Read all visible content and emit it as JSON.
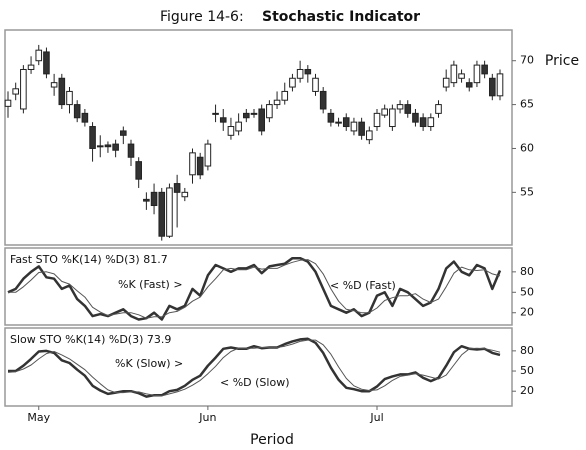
{
  "chart_data": [
    {
      "type": "candlestick",
      "figure_label": "Figure 14-6:",
      "title": "Stochastic Indicator",
      "ylabel": "Price",
      "up_color": "#ffffff",
      "down_color": "#333333",
      "open": [
        64.8,
        66.2,
        64.5,
        69,
        70,
        71,
        67,
        68,
        65,
        65,
        64,
        62.5,
        60.2,
        60.4,
        60.5,
        62,
        60.5,
        58.5,
        54.2,
        55,
        55,
        50,
        56,
        54.5,
        57,
        59,
        58,
        64,
        63.5,
        61.5,
        62,
        64,
        64,
        64.5,
        63.5,
        65,
        65.5,
        67,
        68,
        69,
        66.5,
        66.5,
        64,
        63,
        63.5,
        62,
        63,
        61,
        62.5,
        63.8,
        62.5,
        64.5,
        65,
        64,
        63.5,
        62.5,
        64,
        67,
        67.5,
        68,
        67.5,
        67.5,
        69.5,
        68,
        66
      ],
      "high": [
        66.5,
        67.5,
        69.5,
        70.5,
        71.8,
        71.5,
        68.5,
        68.5,
        67,
        65.5,
        64.5,
        63,
        61.5,
        60.8,
        61,
        62.5,
        61,
        59,
        55,
        56,
        55.5,
        56,
        57,
        55.5,
        60,
        59.5,
        61,
        65,
        64.5,
        63.5,
        64,
        64.5,
        64.5,
        65,
        65.5,
        66.5,
        67.5,
        68.5,
        70,
        69.5,
        68.5,
        67,
        64.5,
        63.5,
        64,
        63.5,
        63.5,
        62.5,
        64.5,
        65,
        65,
        65.5,
        65.5,
        64.5,
        64,
        64,
        65.5,
        69,
        70,
        69,
        68,
        70,
        70,
        68.5,
        69
      ],
      "low": [
        63.5,
        65.5,
        64,
        68.5,
        69.5,
        68,
        66,
        64.5,
        64,
        63,
        62.5,
        58.5,
        59,
        59.5,
        59,
        60.5,
        58,
        55.5,
        53,
        52.5,
        49.5,
        49.8,
        51,
        54,
        56,
        56.5,
        57.5,
        63,
        62,
        61,
        61.5,
        63,
        63.5,
        61.5,
        63,
        64.5,
        65,
        66.5,
        67.5,
        67.5,
        66,
        64,
        62.5,
        62.5,
        62,
        61.5,
        61,
        60.5,
        62,
        63.5,
        62,
        64,
        63.5,
        62.5,
        62,
        62,
        63.5,
        66.5,
        67,
        67.5,
        66.5,
        67,
        68,
        65.5,
        65.5
      ],
      "close": [
        65.5,
        66.8,
        69,
        69.5,
        71.2,
        68.5,
        67.5,
        65,
        66.5,
        63.5,
        63,
        60,
        60.3,
        60.2,
        59.8,
        61.5,
        59,
        56.5,
        54,
        53.5,
        50,
        55.5,
        55,
        55,
        59.5,
        57,
        60.5,
        64,
        63,
        62.5,
        63,
        63.5,
        64,
        62,
        65,
        65.5,
        66.5,
        68,
        69,
        68.5,
        68,
        64.5,
        63,
        63,
        62.5,
        63,
        61.5,
        62,
        64,
        64.5,
        64.5,
        65,
        64,
        63,
        62.5,
        63.5,
        65,
        68,
        69.5,
        68.5,
        67,
        69.5,
        68.5,
        66,
        68.5
      ],
      "ylim": [
        49,
        73.5
      ],
      "yticks": [
        55,
        60,
        65,
        70
      ]
    },
    {
      "type": "line",
      "label": "Fast STO %K(14) %D(3) 81.7",
      "annotations": [
        "%K (Fast) >",
        "< %D (Fast)"
      ],
      "series": [
        {
          "color": "#333333",
          "line_width": 2.5,
          "values": [
            50,
            55,
            70,
            80,
            88,
            72,
            70,
            55,
            60,
            40,
            30,
            15,
            18,
            15,
            20,
            25,
            15,
            10,
            12,
            20,
            10,
            30,
            25,
            30,
            55,
            45,
            75,
            90,
            85,
            80,
            85,
            85,
            90,
            78,
            88,
            90,
            92,
            100,
            100,
            95,
            80,
            55,
            30,
            25,
            20,
            25,
            15,
            20,
            45,
            50,
            30,
            55,
            50,
            40,
            30,
            35,
            55,
            85,
            95,
            80,
            75,
            90,
            85,
            55,
            82
          ]
        },
        {
          "color": "#555555",
          "line_width": 1,
          "values": [
            50,
            50,
            58,
            68,
            79,
            80,
            77,
            66,
            62,
            52,
            43,
            28,
            21,
            16,
            18,
            20,
            20,
            17,
            12,
            14,
            14,
            20,
            22,
            28,
            37,
            43,
            58,
            70,
            83,
            85,
            83,
            83,
            87,
            84,
            85,
            85,
            90,
            94,
            97,
            98,
            92,
            77,
            55,
            37,
            25,
            23,
            20,
            20,
            27,
            38,
            42,
            45,
            45,
            48,
            40,
            35,
            40,
            58,
            78,
            87,
            83,
            82,
            83,
            77,
            74
          ]
        }
      ],
      "ylim": [
        2,
        115
      ],
      "yticks": [
        20,
        50,
        80
      ]
    },
    {
      "type": "line",
      "label": "Slow STO %K(14) %D(3) 73.9",
      "annotations": [
        "%K (Slow) >",
        "< %D (Slow)"
      ],
      "xlabel": "Period",
      "categories": [
        null,
        null,
        null,
        null,
        "May",
        null,
        null,
        null,
        null,
        null,
        null,
        null,
        null,
        null,
        null,
        null,
        null,
        null,
        null,
        null,
        null,
        null,
        null,
        null,
        null,
        null,
        "Jun",
        null,
        null,
        null,
        null,
        null,
        null,
        null,
        null,
        null,
        null,
        null,
        null,
        null,
        null,
        null,
        null,
        null,
        null,
        null,
        null,
        null,
        "Jul",
        null,
        null,
        null,
        null,
        null,
        null,
        null,
        null,
        null,
        null,
        null,
        null,
        null,
        null,
        null,
        null
      ],
      "series": [
        {
          "color": "#333333",
          "line_width": 2.5,
          "values": [
            50,
            50,
            58,
            68,
            79,
            80,
            77,
            66,
            62,
            52,
            43,
            28,
            21,
            16,
            18,
            20,
            20,
            17,
            12,
            14,
            14,
            20,
            22,
            28,
            37,
            43,
            58,
            70,
            83,
            85,
            83,
            83,
            87,
            84,
            85,
            85,
            90,
            94,
            97,
            98,
            92,
            77,
            55,
            37,
            25,
            23,
            20,
            20,
            27,
            38,
            42,
            45,
            45,
            48,
            40,
            35,
            40,
            58,
            78,
            87,
            83,
            82,
            83,
            77,
            74
          ]
        },
        {
          "color": "#555555",
          "line_width": 1,
          "values": [
            48,
            49,
            53,
            59,
            68,
            76,
            79,
            74,
            68,
            60,
            52,
            41,
            31,
            22,
            18,
            18,
            19,
            19,
            16,
            14,
            13,
            16,
            19,
            23,
            29,
            36,
            46,
            57,
            70,
            79,
            84,
            84,
            84,
            85,
            85,
            85,
            87,
            90,
            94,
            96,
            96,
            89,
            75,
            56,
            39,
            28,
            23,
            21,
            22,
            28,
            36,
            42,
            44,
            46,
            44,
            41,
            38,
            44,
            59,
            74,
            83,
            84,
            83,
            81,
            78
          ]
        }
      ],
      "ylim": [
        -2,
        114
      ],
      "yticks": [
        20,
        50,
        80
      ]
    }
  ]
}
